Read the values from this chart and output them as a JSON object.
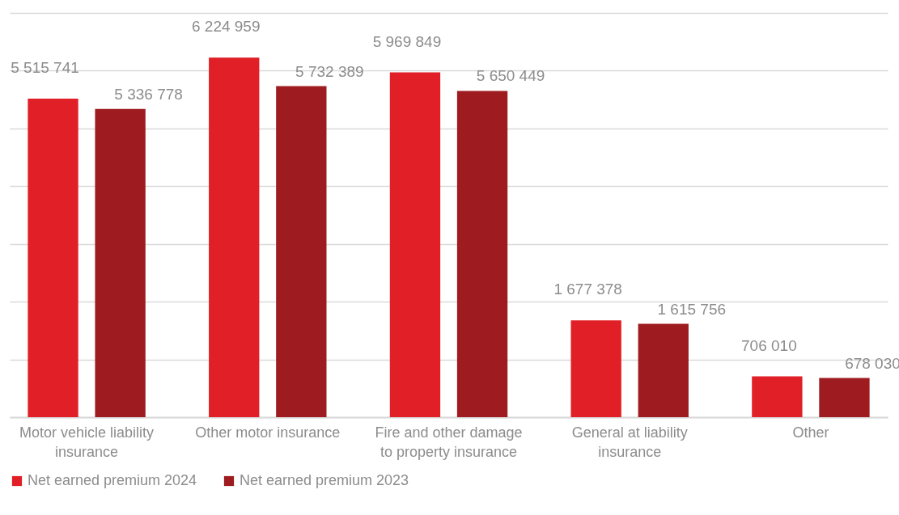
{
  "chart_data": {
    "type": "bar",
    "categories": [
      "Motor vehicle liability insurance",
      "Other motor insurance",
      "Fire and other damage to property insurance",
      "General at liability insurance",
      "Other"
    ],
    "series": [
      {
        "name": "Net earned premium 2024",
        "color": "#e01f26",
        "values": [
          5515741,
          6224959,
          5969849,
          1677378,
          706010
        ]
      },
      {
        "name": "Net earned premium 2023",
        "color": "#9e1b1f",
        "values": [
          5336778,
          5732389,
          5650449,
          1615756,
          678030
        ]
      }
    ],
    "ylim": [
      0,
      7000000
    ],
    "yticks": [
      {
        "value": 0,
        "label": null
      },
      {
        "value": 1000000,
        "label": null
      },
      {
        "value": 2000000,
        "label": null
      },
      {
        "value": 3000000,
        "label": null
      },
      {
        "value": 4000000,
        "label": null
      },
      {
        "value": 5000000,
        "label": null
      },
      {
        "value": 6000000,
        "label": null
      },
      {
        "value": 7000000,
        "label": null
      }
    ],
    "tick_labels": "x",
    "grid": "y",
    "legend": "bottom",
    "data_labels": true
  }
}
